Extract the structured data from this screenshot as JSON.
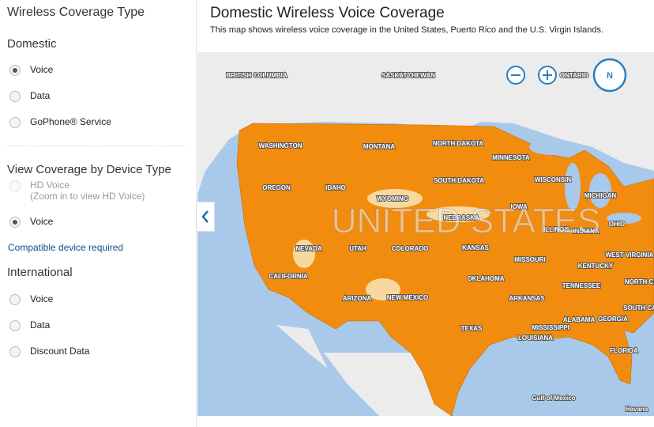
{
  "sidebar": {
    "title": "Wireless Coverage Type",
    "domestic": {
      "heading": "Domestic",
      "options": [
        "Voice",
        "Data",
        "GoPhone® Service"
      ]
    },
    "device": {
      "heading": "View Coverage by Device Type",
      "hd_option": "HD Voice",
      "hd_note": "(Zoom in to view HD Voice)",
      "voice_option": "Voice",
      "link": "Compatible device required"
    },
    "international": {
      "heading": "International",
      "options": [
        "Voice",
        "Data",
        "Discount Data"
      ]
    }
  },
  "main": {
    "title": "Domestic Wireless Voice Coverage",
    "subtitle": "This map shows wireless voice coverage in the United States, Puerto Rico and the U.S. Virgin Islands.",
    "map": {
      "compass": "N",
      "country_label": "UNITED STATES",
      "labels": [
        "BRITISH COLUMBIA",
        "SASKATCHEWAN",
        "ONTARIO",
        "WASHINGTON",
        "MONTANA",
        "NORTH DAKOTA",
        "MINNESOTA",
        "OREGON",
        "IDAHO",
        "WYOMING",
        "SOUTH DAKOTA",
        "WISCONSIN",
        "MICHIGAN",
        "IOWA",
        "NEBRASKA",
        "ILLINOIS",
        "INDIANA",
        "OHIO",
        "NEVADA",
        "UTAH",
        "COLORADO",
        "KANSAS",
        "MISSOURI",
        "CALIFORNIA",
        "KENTUCKY",
        "WEST VIRGINIA",
        "NORTH CA",
        "OKLAHOMA",
        "TENNESSEE",
        "ARIZONA",
        "NEW MEXICO",
        "ARKANSAS",
        "SOUTH CA",
        "MISSISSIPPI",
        "ALABAMA",
        "GEORGIA",
        "TEXAS",
        "LOUISIANA",
        "FLORIDA",
        "Gulf of Mexico",
        "Havana"
      ]
    }
  }
}
